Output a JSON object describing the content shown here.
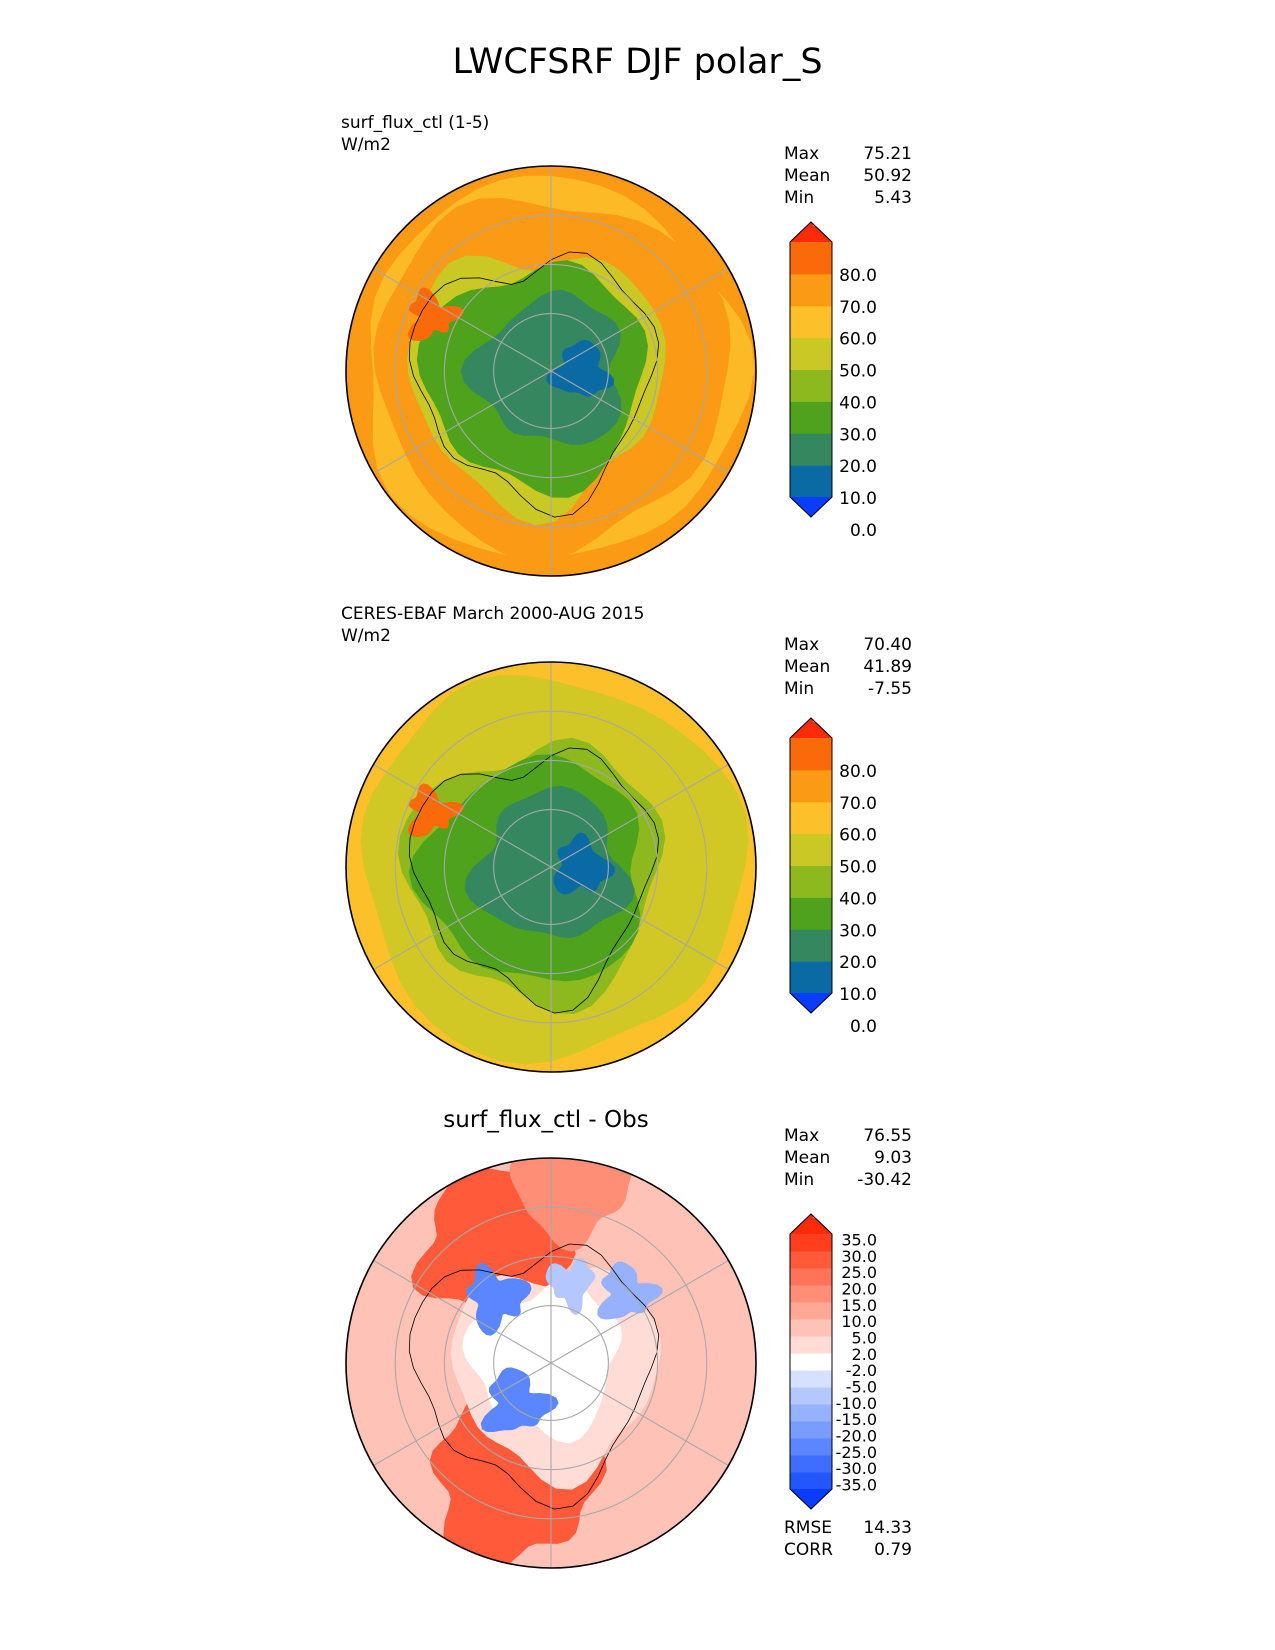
{
  "main_title": "LWCFSRF DJF polar_S",
  "panels": [
    {
      "title": "surf_flux_ctl (1-5)",
      "units": "W/m2",
      "stats": {
        "max_label": "Max",
        "max": "75.21",
        "mean_label": "Mean",
        "mean": "50.92",
        "min_label": "Min",
        "min": "5.43"
      }
    },
    {
      "title": "CERES-EBAF March 2000-AUG 2015",
      "units": "W/m2",
      "stats": {
        "max_label": "Max",
        "max": "70.40",
        "mean_label": "Mean",
        "mean": "41.89",
        "min_label": "Min",
        "min": "-7.55"
      }
    },
    {
      "title": "surf_flux_ctl - Obs",
      "units": "",
      "stats": {
        "max_label": "Max",
        "max": "76.55",
        "mean_label": "Mean",
        "mean": "9.03",
        "min_label": "Min",
        "min": "-30.42"
      },
      "metrics": {
        "rmse_label": "RMSE",
        "rmse": "14.33",
        "corr_label": "CORR",
        "corr": "0.79"
      }
    }
  ],
  "chart_data": [
    {
      "type": "heatmap",
      "projection": "south polar stereographic",
      "title": "surf_flux_ctl (1-5)",
      "units": "W/m2",
      "colorbar": {
        "levels": [
          0,
          10,
          20,
          30,
          40,
          50,
          60,
          70,
          80
        ],
        "tick_labels": [
          "80.0",
          "70.0",
          "60.0",
          "50.0",
          "40.0",
          "30.0",
          "20.0",
          "10.0",
          "0.0"
        ],
        "colors": [
          "#0a3cff",
          "#0a6aa3",
          "#35875f",
          "#4ea21c",
          "#8db91e",
          "#c9c824",
          "#fbc02a",
          "#fb9a14",
          "#fb6a0a",
          "#ff2a0a"
        ],
        "extend": "both"
      },
      "field_summary": {
        "ocean_ring": "#fb9a14",
        "outer_band": "#fbc02a",
        "coast_band": "#c9c824",
        "interior": "#4ea21c",
        "plateau": "#35875f",
        "deep_plateau": "#0a6aa3"
      },
      "stats": {
        "max": 75.21,
        "mean": 50.92,
        "min": 5.43
      }
    },
    {
      "type": "heatmap",
      "projection": "south polar stereographic",
      "title": "CERES-EBAF March 2000-AUG 2015",
      "units": "W/m2",
      "colorbar": {
        "levels": [
          0,
          10,
          20,
          30,
          40,
          50,
          60,
          70,
          80
        ],
        "tick_labels": [
          "80.0",
          "70.0",
          "60.0",
          "50.0",
          "40.0",
          "30.0",
          "20.0",
          "10.0",
          "0.0"
        ],
        "colors": [
          "#0a3cff",
          "#0a6aa3",
          "#35875f",
          "#4ea21c",
          "#8db91e",
          "#c9c824",
          "#fbc02a",
          "#fb9a14",
          "#fb6a0a",
          "#ff2a0a"
        ],
        "extend": "both"
      },
      "field_summary": {
        "ocean_ring": "#fbc02a",
        "outer_band": "#c9c824",
        "coast_band": "#8db91e",
        "interior": "#4ea21c",
        "plateau": "#35875f",
        "deep_plateau": "#0a6aa3"
      },
      "stats": {
        "max": 70.4,
        "mean": 41.89,
        "min": -7.55
      }
    },
    {
      "type": "heatmap",
      "projection": "south polar stereographic",
      "title": "surf_flux_ctl - Obs",
      "colorbar": {
        "levels": [
          -35,
          -30,
          -25,
          -20,
          -15,
          -10,
          -5,
          -2,
          2,
          5,
          10,
          15,
          20,
          25,
          30,
          35
        ],
        "tick_labels": [
          "35.0",
          "30.0",
          "25.0",
          "20.0",
          "15.0",
          "10.0",
          "5.0",
          "2.0",
          "-2.0",
          "-5.0",
          "-10.0",
          "-15.0",
          "-20.0",
          "-25.0",
          "-30.0",
          "-35.0"
        ],
        "colors": [
          "#0a3cff",
          "#2456ff",
          "#3e6eff",
          "#5a86ff",
          "#789cff",
          "#96b2ff",
          "#b4c8ff",
          "#d6e0ff",
          "#ffffff",
          "#ffdcd6",
          "#ffc2b6",
          "#ffa896",
          "#ff8e76",
          "#ff7458",
          "#ff5a3a",
          "#ff3e1e",
          "#ff2a0a"
        ],
        "extend": "both"
      },
      "field_summary": {
        "ocean": "#ffc2b6",
        "strong_warm": "#ff5a3a",
        "near_zero": "#ffffff",
        "cool_patches": "#5a86ff"
      },
      "stats": {
        "max": 76.55,
        "mean": 9.03,
        "min": -30.42
      },
      "metrics": {
        "rmse": 14.33,
        "corr": 0.79
      }
    }
  ]
}
